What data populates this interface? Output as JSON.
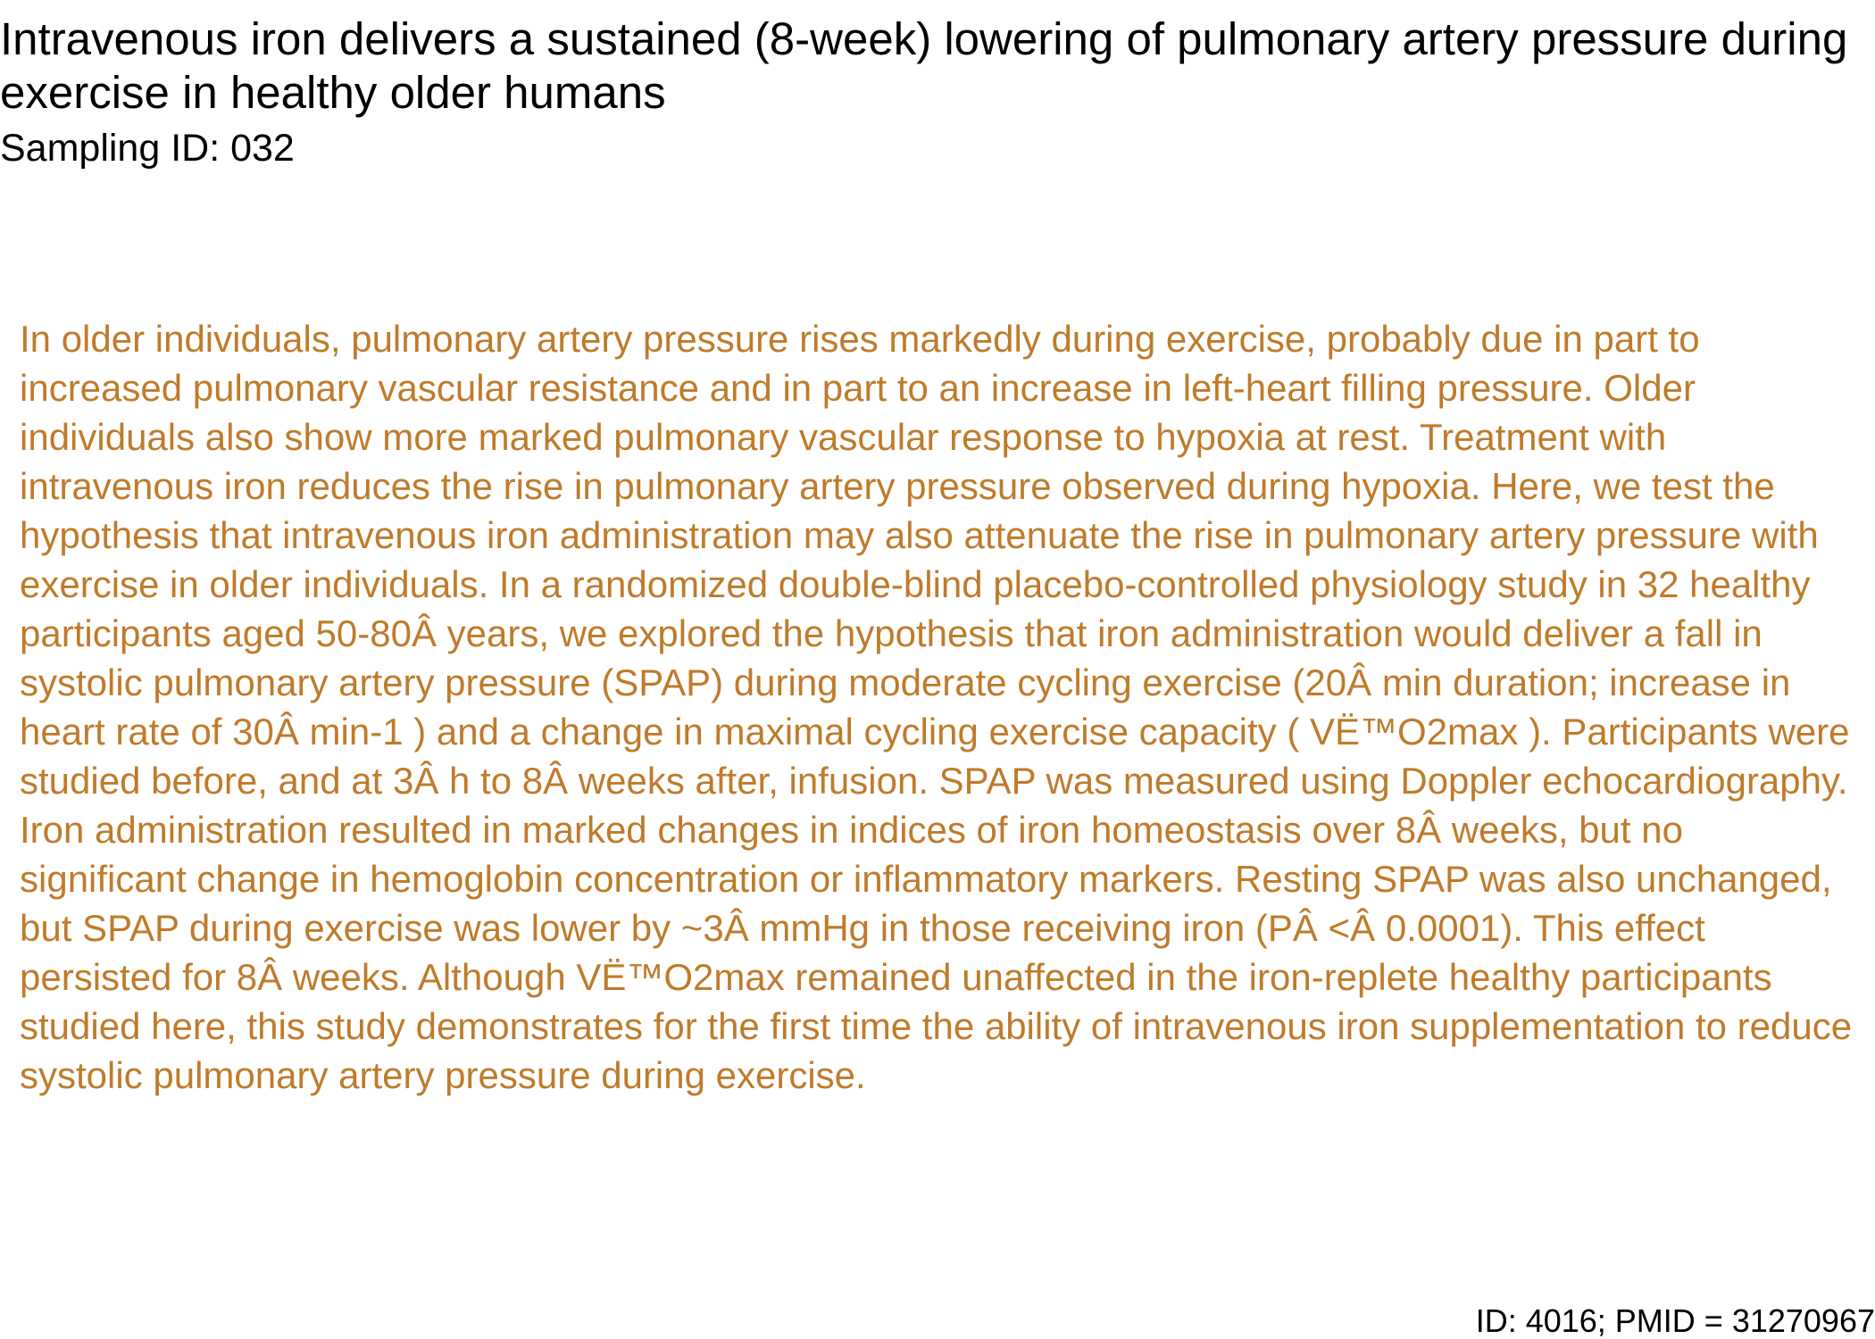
{
  "document": {
    "title": "Intravenous iron delivers a sustained (8-week) lowering of pulmonary artery pressure during exercise in healthy older humans",
    "sampling_id": "Sampling ID: 032",
    "abstract": "In older individuals, pulmonary artery pressure rises markedly during exercise, probably due in part to increased pulmonary vascular resistance and in part to an increase in left-heart filling pressure. Older individuals also show more marked pulmonary vascular response to hypoxia at rest. Treatment with intravenous iron reduces the rise in pulmonary artery pressure observed during hypoxia. Here, we test the hypothesis that intravenous iron administration may also attenuate the rise in pulmonary artery pressure with exercise in older individuals. In a randomized double-blind placebo-controlled physiology study in 32 healthy participants aged 50-80Â years, we explored the hypothesis that iron administration would deliver a fall in systolic pulmonary artery pressure (SPAP) during moderate cycling exercise (20Â min duration; increase in heart rate of 30Â min-1 ) and a change in maximal cycling exercise capacity ( VË™O2max ). Participants were studied before, and at 3Â h to 8Â weeks after, infusion. SPAP was measured using Doppler echocardiography. Iron administration resulted in marked changes in indices of iron homeostasis over 8Â weeks, but no significant change in hemoglobin concentration or inflammatory markers. Resting SPAP was also unchanged, but SPAP during exercise was lower by ~3Â mmHg in those receiving iron (PÂ <Â 0.0001). This effect persisted for 8Â weeks. Although VË™O2max remained unaffected in the iron-replete healthy participants studied here, this study demonstrates for the first time the ability of intravenous iron supplementation to reduce systolic pulmonary artery pressure during exercise.",
    "footer_id": "ID: 4016; PMID = 31270967"
  },
  "colors": {
    "title_text": "#000000",
    "abstract_text": "#bf7b2b",
    "background": "#ffffff"
  }
}
